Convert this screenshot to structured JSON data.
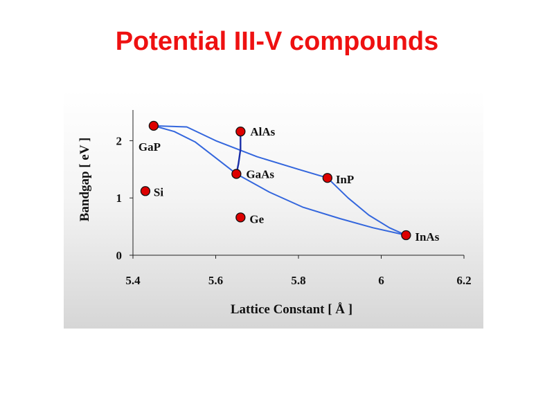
{
  "page": {
    "title": "Potential III-V compounds",
    "title_color": "#ee1111"
  },
  "chart_data": {
    "type": "scatter",
    "title": "",
    "xlabel": "Lattice Constant [ Å ]",
    "ylabel": "Bandgap [ eV ]",
    "xlim": [
      5.4,
      6.2
    ],
    "ylim": [
      0,
      2.5
    ],
    "xticks": [
      5.4,
      5.6,
      5.8,
      6.0,
      6.2
    ],
    "xtick_labels": [
      "5.4",
      "5.6",
      "5.8",
      "6",
      "6.2"
    ],
    "yticks": [
      0,
      1,
      2
    ],
    "ytick_labels": [
      "0",
      "1",
      "2"
    ],
    "grid": false,
    "legend": "none",
    "marker_color": "#dd0000",
    "curve_color": "#3366dd",
    "points": [
      {
        "label": "GaP",
        "x": 5.45,
        "y": 2.26
      },
      {
        "label": "AlAs",
        "x": 5.66,
        "y": 2.16
      },
      {
        "label": "GaAs",
        "x": 5.65,
        "y": 1.42
      },
      {
        "label": "InP",
        "x": 5.87,
        "y": 1.35
      },
      {
        "label": "Si",
        "x": 5.43,
        "y": 1.12
      },
      {
        "label": "Ge",
        "x": 5.66,
        "y": 0.66
      },
      {
        "label": "InAs",
        "x": 6.06,
        "y": 0.35
      }
    ],
    "curves": [
      {
        "from": "GaP",
        "to": "InP",
        "points": [
          [
            5.45,
            2.26
          ],
          [
            5.53,
            2.24
          ],
          [
            5.6,
            2.0
          ],
          [
            5.7,
            1.72
          ],
          [
            5.8,
            1.5
          ],
          [
            5.87,
            1.35
          ]
        ]
      },
      {
        "from": "InP",
        "to": "InAs",
        "points": [
          [
            5.87,
            1.35
          ],
          [
            5.92,
            1.0
          ],
          [
            5.97,
            0.7
          ],
          [
            6.02,
            0.48
          ],
          [
            6.06,
            0.35
          ]
        ]
      },
      {
        "from": "GaP",
        "to": "GaAs",
        "points": [
          [
            5.45,
            2.26
          ],
          [
            5.5,
            2.16
          ],
          [
            5.55,
            1.98
          ],
          [
            5.6,
            1.7
          ],
          [
            5.65,
            1.42
          ]
        ]
      },
      {
        "from": "GaAs",
        "to": "InAs",
        "points": [
          [
            5.65,
            1.42
          ],
          [
            5.73,
            1.1
          ],
          [
            5.81,
            0.84
          ],
          [
            5.9,
            0.64
          ],
          [
            5.98,
            0.48
          ],
          [
            6.06,
            0.35
          ]
        ]
      },
      {
        "from": "GaAs",
        "to": "AlAs",
        "points": [
          [
            5.65,
            1.42
          ],
          [
            5.655,
            1.6
          ],
          [
            5.66,
            1.85
          ],
          [
            5.66,
            2.16
          ]
        ]
      }
    ]
  }
}
